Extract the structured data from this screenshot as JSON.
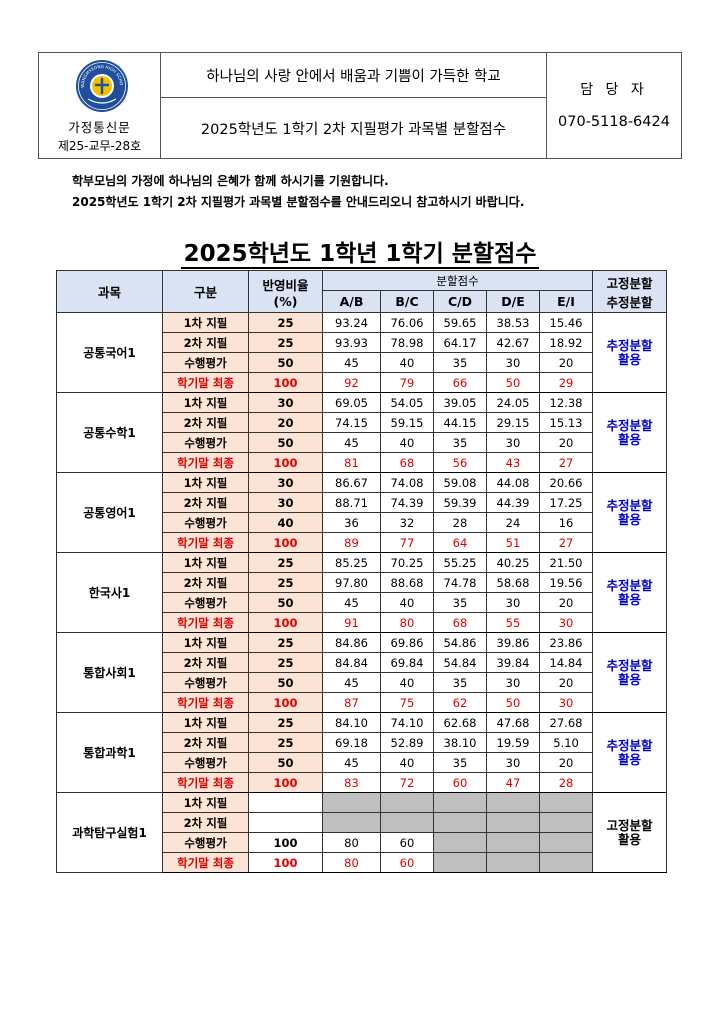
{
  "header": {
    "logo_text": "GWANGMYEONG HIGH SCHOOL",
    "org_line1": "가정통신문",
    "org_line2": "제25-교무-28호",
    "slogan": "하나님의 사랑 안에서 배움과 기쁨이 가득한 학교",
    "doc_title": "2025학년도 1학기 2차 지필평가 과목별 분할점수",
    "manager_label": "담 당 자",
    "phone": "070-5118-6424"
  },
  "greeting": {
    "line1": "학부모님의 가정에 하나님의 은혜가 함께 하시기를 기원합니다.",
    "line2": "2025학년도 1학기 2차 지필평가 과목별 분할점수를 안내드리오니 참고하시기 바랍니다."
  },
  "main_title": "2025학년도 1학년 1학기 분할점수",
  "table": {
    "headers": {
      "subject": "과목",
      "category": "구분",
      "weight_line1": "반영비율",
      "weight_line2": "(%)",
      "cut_group": "분할점수",
      "method_line1": "고정분할",
      "method_line2": "추정분할",
      "grades": [
        "A/B",
        "B/C",
        "C/D",
        "D/E",
        "E/I"
      ]
    },
    "subjects": [
      {
        "name": "공통국어1",
        "method_line1": "추정분할",
        "method_line2": "활용",
        "rows": [
          {
            "label": "1차 지필",
            "weight": "25",
            "values": [
              "93.24",
              "76.06",
              "59.65",
              "38.53",
              "15.46"
            ]
          },
          {
            "label": "2차 지필",
            "weight": "25",
            "values": [
              "93.93",
              "78.98",
              "64.17",
              "42.67",
              "18.92"
            ]
          },
          {
            "label": "수행평가",
            "weight": "50",
            "values": [
              "45",
              "40",
              "35",
              "30",
              "20"
            ]
          },
          {
            "label": "학기말 최종",
            "weight": "100",
            "values": [
              "92",
              "79",
              "66",
              "50",
              "29"
            ]
          }
        ]
      },
      {
        "name": "공통수학1",
        "method_line1": "추정분할",
        "method_line2": "활용",
        "rows": [
          {
            "label": "1차 지필",
            "weight": "30",
            "values": [
              "69.05",
              "54.05",
              "39.05",
              "24.05",
              "12.38"
            ]
          },
          {
            "label": "2차 지필",
            "weight": "20",
            "values": [
              "74.15",
              "59.15",
              "44.15",
              "29.15",
              "15.13"
            ]
          },
          {
            "label": "수행평가",
            "weight": "50",
            "values": [
              "45",
              "40",
              "35",
              "30",
              "20"
            ]
          },
          {
            "label": "학기말 최종",
            "weight": "100",
            "values": [
              "81",
              "68",
              "56",
              "43",
              "27"
            ]
          }
        ]
      },
      {
        "name": "공통영어1",
        "method_line1": "추정분할",
        "method_line2": "활용",
        "rows": [
          {
            "label": "1차 지필",
            "weight": "30",
            "values": [
              "86.67",
              "74.08",
              "59.08",
              "44.08",
              "20.66"
            ]
          },
          {
            "label": "2차 지필",
            "weight": "30",
            "values": [
              "88.71",
              "74.39",
              "59.39",
              "44.39",
              "17.25"
            ]
          },
          {
            "label": "수행평가",
            "weight": "40",
            "values": [
              "36",
              "32",
              "28",
              "24",
              "16"
            ]
          },
          {
            "label": "학기말 최종",
            "weight": "100",
            "values": [
              "89",
              "77",
              "64",
              "51",
              "27"
            ]
          }
        ]
      },
      {
        "name": "한국사1",
        "method_line1": "추정분할",
        "method_line2": "활용",
        "rows": [
          {
            "label": "1차 지필",
            "weight": "25",
            "values": [
              "85.25",
              "70.25",
              "55.25",
              "40.25",
              "21.50"
            ]
          },
          {
            "label": "2차 지필",
            "weight": "25",
            "values": [
              "97.80",
              "88.68",
              "74.78",
              "58.68",
              "19.56"
            ]
          },
          {
            "label": "수행평가",
            "weight": "50",
            "values": [
              "45",
              "40",
              "35",
              "30",
              "20"
            ]
          },
          {
            "label": "학기말 최종",
            "weight": "100",
            "values": [
              "91",
              "80",
              "68",
              "55",
              "30"
            ]
          }
        ]
      },
      {
        "name": "통합사회1",
        "method_line1": "추정분할",
        "method_line2": "활용",
        "rows": [
          {
            "label": "1차 지필",
            "weight": "25",
            "values": [
              "84.86",
              "69.86",
              "54.86",
              "39.86",
              "23.86"
            ]
          },
          {
            "label": "2차 지필",
            "weight": "25",
            "values": [
              "84.84",
              "69.84",
              "54.84",
              "39.84",
              "14.84"
            ]
          },
          {
            "label": "수행평가",
            "weight": "50",
            "values": [
              "45",
              "40",
              "35",
              "30",
              "20"
            ]
          },
          {
            "label": "학기말 최종",
            "weight": "100",
            "values": [
              "87",
              "75",
              "62",
              "50",
              "30"
            ]
          }
        ]
      },
      {
        "name": "통합과학1",
        "method_line1": "추정분할",
        "method_line2": "활용",
        "rows": [
          {
            "label": "1차 지필",
            "weight": "25",
            "values": [
              "84.10",
              "74.10",
              "62.68",
              "47.68",
              "27.68"
            ]
          },
          {
            "label": "2차 지필",
            "weight": "25",
            "values": [
              "69.18",
              "52.89",
              "38.10",
              "19.59",
              "5.10"
            ]
          },
          {
            "label": "수행평가",
            "weight": "50",
            "values": [
              "45",
              "40",
              "35",
              "30",
              "20"
            ]
          },
          {
            "label": "학기말 최종",
            "weight": "100",
            "values": [
              "83",
              "72",
              "60",
              "47",
              "28"
            ]
          }
        ]
      },
      {
        "name": "과학탐구실험1",
        "method_line1": "고정분할",
        "method_line2": "활용",
        "fixed": true,
        "rows": [
          {
            "label": "1차 지필",
            "weight": "",
            "values": []
          },
          {
            "label": "2차 지필",
            "weight": "",
            "values": []
          },
          {
            "label": "수행평가",
            "weight": "100",
            "values": [
              "80",
              "60"
            ]
          },
          {
            "label": "학기말 최종",
            "weight": "100",
            "values": [
              "80",
              "60"
            ]
          }
        ]
      }
    ]
  },
  "colors": {
    "header_bg": "#dae3f3",
    "label_bg": "#fbe4d5",
    "final_text": "#e00000",
    "method_text": "#0000cc",
    "disabled_bg": "#bfbfbf"
  }
}
